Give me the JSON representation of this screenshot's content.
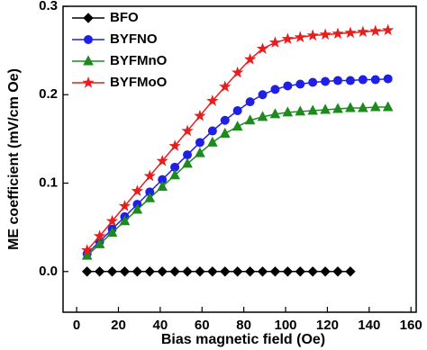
{
  "chart_data": {
    "type": "line",
    "x_label": "Bias magnetic field (Oe)",
    "y_label": "ME coefficient (mV/cm Oe)",
    "x": [
      5,
      11,
      17,
      23,
      29,
      35,
      41,
      47,
      53,
      59,
      65,
      71,
      77,
      83,
      89,
      95,
      101,
      107,
      113,
      119,
      125,
      131,
      137,
      143,
      149
    ],
    "series": [
      {
        "name": "BFO",
        "color": "#000000",
        "marker": "diamond",
        "values": [
          0,
          0,
          0,
          0,
          0,
          0,
          0,
          0,
          0,
          0,
          0,
          0,
          0,
          0,
          0,
          0,
          0,
          0,
          0,
          0,
          0,
          0,
          null,
          null,
          null
        ]
      },
      {
        "name": "BYFNO",
        "color": "#1f1fe6",
        "marker": "circle",
        "values": [
          0.02,
          0.034,
          0.048,
          0.062,
          0.076,
          0.09,
          0.104,
          0.118,
          0.132,
          0.146,
          0.159,
          0.171,
          0.182,
          0.192,
          0.2,
          0.206,
          0.21,
          0.212,
          0.214,
          0.215,
          0.216,
          0.216,
          0.217,
          0.217,
          0.218
        ]
      },
      {
        "name": "BYFMnO",
        "color": "#1e8a1e",
        "marker": "triangle",
        "values": [
          0.018,
          0.031,
          0.044,
          0.057,
          0.07,
          0.083,
          0.096,
          0.109,
          0.122,
          0.134,
          0.146,
          0.156,
          0.164,
          0.171,
          0.175,
          0.178,
          0.18,
          0.181,
          0.182,
          0.183,
          0.184,
          0.185,
          0.185,
          0.186,
          0.186
        ]
      },
      {
        "name": "BYFMoO",
        "color": "#e61e1e",
        "marker": "star",
        "values": [
          0.024,
          0.04,
          0.057,
          0.074,
          0.091,
          0.108,
          0.125,
          0.142,
          0.159,
          0.176,
          0.193,
          0.209,
          0.225,
          0.24,
          0.252,
          0.259,
          0.263,
          0.265,
          0.267,
          0.268,
          0.269,
          0.27,
          0.271,
          0.272,
          0.273
        ]
      }
    ],
    "xlim": [
      -6.5,
      162.5
    ],
    "ylim": [
      -0.046,
      0.3
    ],
    "xticks": [
      0,
      20,
      40,
      60,
      80,
      100,
      120,
      140,
      160
    ],
    "yticks": [
      {
        "value": 0,
        "label": "0.0"
      },
      0.1,
      0.2,
      0.3
    ],
    "legend": "upper left"
  }
}
